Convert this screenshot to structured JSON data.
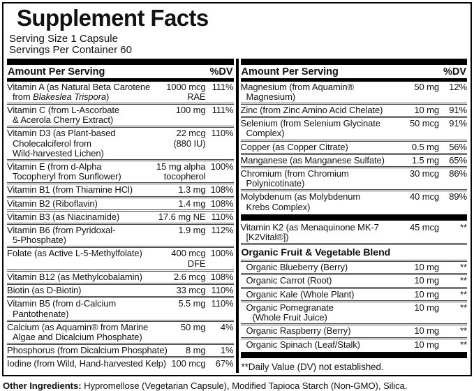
{
  "header": {
    "title": "Supplement Facts",
    "serving_size": "Serving Size 1 Capsule",
    "servings_per_container": "Servings Per Container 60"
  },
  "column_header": {
    "amount": "Amount Per Serving",
    "dv": "%DV"
  },
  "left": {
    "rows": [
      {
        "name_pre": "Vitamin A (as Natural Beta Carotene\nfrom ",
        "name_italic": "Blakeslea Trispora",
        "name_post": ")",
        "amount": "1000 mcg\nRAE",
        "dv": "111%"
      },
      {
        "name": "Vitamin C (from L-Ascorbate\n& Acerola Cherry Extract)",
        "amount": "100 mg",
        "dv": "111%"
      },
      {
        "name": "Vitamin D3 (as Plant-based\nCholecalciferol from\nWild-harvested Lichen)",
        "amount": "22 mcg\n(880 IU)",
        "dv": "110%"
      },
      {
        "name": "Vitamin E (from d-Alpha\nTocopheryl from Sunflower)",
        "amount": "15 mg alpha\ntocopherol",
        "dv": "100%"
      },
      {
        "name": "Vitamin B1 (from Thiamine HCl)",
        "amount": "1.3 mg",
        "dv": "108%"
      },
      {
        "name": "Vitamin B2 (Riboflavin)",
        "amount": "1.4 mg",
        "dv": "108%"
      },
      {
        "name": "Vitamin B3 (as Niacinamide)",
        "amount": "17.6 mg NE",
        "dv": "110%"
      },
      {
        "name": "Vitamin B6 (from Pyridoxal-\n5-Phosphate)",
        "amount": "1.9 mg",
        "dv": "112%"
      },
      {
        "name": "Folate (as Active L-5-Methylfolate)",
        "amount": "400 mcg\nDFE",
        "dv": "100%"
      },
      {
        "name": "Vitamin B12 (as Methylcobalamin)",
        "amount": "2.6 mcg",
        "dv": "108%"
      },
      {
        "name": "Biotin (as D-Biotin)",
        "amount": "33 mcg",
        "dv": "110%"
      },
      {
        "name": "Vitamin B5 (from d-Calcium\nPantothenate)",
        "amount": "5.5 mg",
        "dv": "110%"
      },
      {
        "name": "Calcium (as Aquamin® from Marine\nAlgae and Dicalcium Phosphate)",
        "amount": "50 mg",
        "dv": "4%"
      },
      {
        "name": "Phosphorus (from Dicalcium Phosphate)",
        "amount": "8 mg",
        "dv": "1%"
      },
      {
        "name": "Iodine (from Wild, Hand-harvested Kelp)",
        "amount": "100 mcg",
        "dv": "67%"
      }
    ]
  },
  "right": {
    "minerals": [
      {
        "name": "Magnesium (from Aquamin®\nMagnesium)",
        "amount": "50 mg",
        "dv": "12%"
      },
      {
        "name": "Zinc (from Zinc Amino Acid Chelate)",
        "amount": "10 mg",
        "dv": "91%"
      },
      {
        "name": "Selenium (from Selenium Glycinate\nComplex)",
        "amount": "50 mcg",
        "dv": "91%"
      },
      {
        "name": "Copper (as Copper Citrate)",
        "amount": "0.5 mg",
        "dv": "56%"
      },
      {
        "name": "Manganese (as Manganese Sulfate)",
        "amount": "1.5 mg",
        "dv": "65%"
      },
      {
        "name": "Chromium (from Chromium\nPolynicotinate)",
        "amount": "30 mcg",
        "dv": "86%"
      },
      {
        "name": "Molybdenum (as Molybdenum\nKrebs Complex)",
        "amount": "40 mcg",
        "dv": "89%"
      }
    ],
    "k2_rows": [
      {
        "name": "Vitamin K2 (as Menaquinone MK-7\n[K2Vital®])",
        "amount": "45 mcg",
        "dv": "**"
      }
    ],
    "blend_title": "Organic Fruit & Vegetable Blend",
    "blend": [
      {
        "name": "Organic Blueberry (Berry)",
        "amount": "10 mg",
        "dv": "**"
      },
      {
        "name": "Organic Carrot (Root)",
        "amount": "10 mg",
        "dv": "**"
      },
      {
        "name": "Organic Kale (Whole Plant)",
        "amount": "10 mg",
        "dv": "**"
      },
      {
        "name": "Organic Pomegranate\n(Whole Fruit Juice)",
        "amount": "10 mg",
        "dv": "**"
      },
      {
        "name": "Organic Raspberry (Berry)",
        "amount": "10 mg",
        "dv": "**"
      },
      {
        "name": "Organic Spinach (Leaf/Stalk)",
        "amount": "10 mg",
        "dv": "**"
      }
    ],
    "footnote": "**Daily Value (DV) not established."
  },
  "other_ingredients": {
    "label": "Other Ingredients:",
    "text": " Hypromellose (Vegetarian Capsule), Modified Tapioca Starch (Non-GMO), Silica."
  },
  "colors": {
    "bar": "#000000",
    "separator": "#474747",
    "text": "#111111",
    "background": "#ffffff"
  }
}
